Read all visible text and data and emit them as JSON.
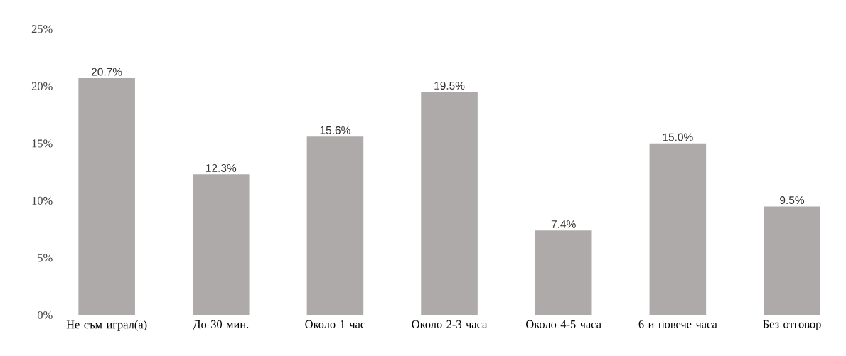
{
  "chart_data": {
    "type": "bar",
    "categories": [
      "Не съм играл(а)",
      "До 30 мин.",
      "Около 1 час",
      "Около 2-3 часа",
      "Около 4-5 часа",
      "6 и повече часа",
      "Без отговор"
    ],
    "values": [
      20.7,
      12.3,
      15.6,
      19.5,
      7.4,
      15.0,
      9.5
    ],
    "value_labels": [
      "20.7%",
      "12.3%",
      "15.6%",
      "19.5%",
      "7.4%",
      "15.0%",
      "9.5%"
    ],
    "color": "#aeaaaa",
    "ylim": [
      0,
      25
    ],
    "yticks": [
      {
        "value": 0,
        "label": "0%"
      },
      {
        "value": 5,
        "label": "5%"
      },
      {
        "value": 10,
        "label": "10%"
      },
      {
        "value": 15,
        "label": "15%"
      },
      {
        "value": 20,
        "label": "20%"
      },
      {
        "value": 25,
        "label": "25%"
      }
    ],
    "grid": false
  }
}
